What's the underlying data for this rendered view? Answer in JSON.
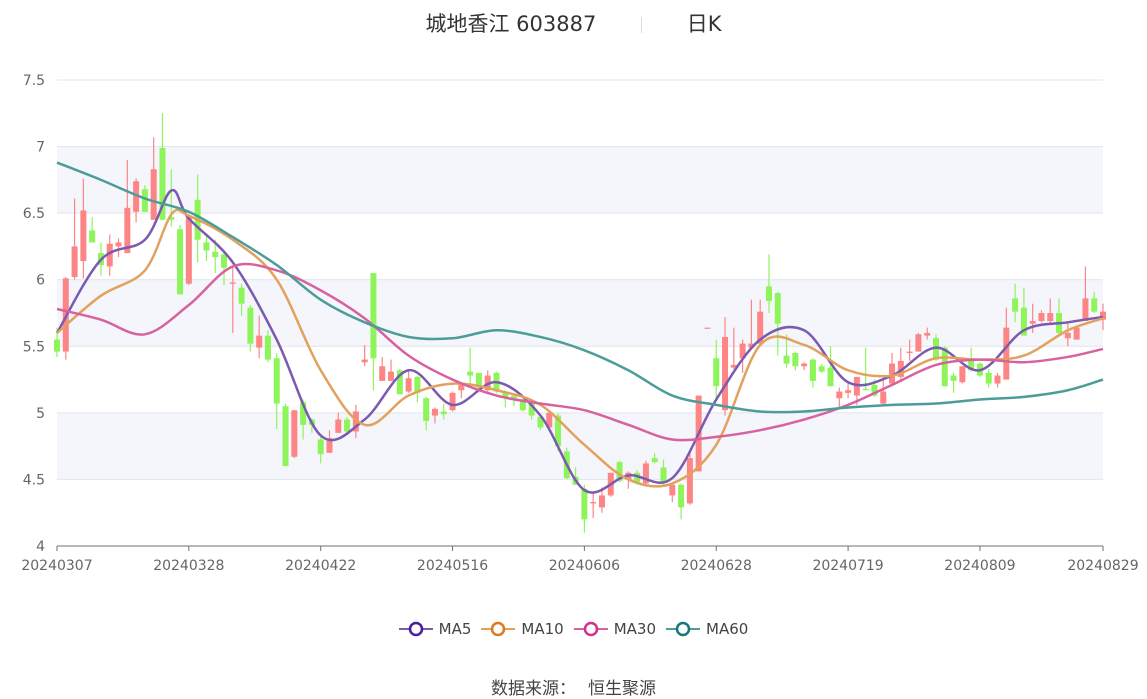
{
  "title": {
    "stock_name": "城地香江",
    "stock_code": "603887",
    "period": "日K"
  },
  "footer": {
    "label": "数据来源：",
    "source": "恒生聚源"
  },
  "chart_data": {
    "type": "candlestick",
    "ylim": [
      4,
      7.5
    ],
    "yticks": [
      "4",
      "4.5",
      "5",
      "5.5",
      "6",
      "6.5",
      "7",
      "7.5"
    ],
    "grid": true,
    "legend_placement": "bottom",
    "xticks": [
      {
        "index": 0,
        "label": "20240307"
      },
      {
        "index": 15,
        "label": "20240328"
      },
      {
        "index": 30,
        "label": "20240422"
      },
      {
        "index": 45,
        "label": "20240516"
      },
      {
        "index": 60,
        "label": "20240606"
      },
      {
        "index": 75,
        "label": "20240628"
      },
      {
        "index": 90,
        "label": "20240719"
      },
      {
        "index": 105,
        "label": "20240809"
      },
      {
        "index": 119,
        "label": "20240829"
      }
    ],
    "colors": {
      "up": "#fd8585",
      "down": "#8df55a"
    },
    "candles_fields": [
      "open",
      "close",
      "low",
      "high"
    ],
    "candles": [
      [
        5.55,
        5.46,
        5.42,
        5.64
      ],
      [
        5.46,
        6.01,
        5.4,
        6.02
      ],
      [
        6.02,
        6.25,
        6.0,
        6.61
      ],
      [
        6.14,
        6.52,
        6.01,
        6.76
      ],
      [
        6.37,
        6.28,
        6.28,
        6.47
      ],
      [
        6.2,
        6.11,
        6.03,
        6.28
      ],
      [
        6.1,
        6.27,
        6.03,
        6.34
      ],
      [
        6.25,
        6.28,
        6.17,
        6.31
      ],
      [
        6.2,
        6.54,
        6.2,
        6.9
      ],
      [
        6.51,
        6.74,
        6.43,
        6.76
      ],
      [
        6.68,
        6.51,
        6.51,
        6.71
      ],
      [
        6.45,
        6.83,
        6.45,
        7.07
      ],
      [
        6.99,
        6.45,
        6.45,
        7.25
      ],
      [
        6.47,
        6.45,
        6.4,
        6.83
      ],
      [
        6.38,
        5.89,
        5.89,
        6.41
      ],
      [
        5.97,
        6.48,
        5.96,
        6.49
      ],
      [
        6.6,
        6.3,
        6.13,
        6.79
      ],
      [
        6.28,
        6.22,
        6.14,
        6.33
      ],
      [
        6.21,
        6.17,
        6.05,
        6.3
      ],
      [
        6.19,
        6.09,
        5.96,
        6.22
      ],
      [
        5.97,
        5.98,
        5.6,
        6.1
      ],
      [
        5.94,
        5.82,
        5.73,
        5.97
      ],
      [
        5.79,
        5.52,
        5.46,
        5.81
      ],
      [
        5.49,
        5.58,
        5.41,
        5.73
      ],
      [
        5.58,
        5.4,
        5.38,
        5.62
      ],
      [
        5.41,
        5.07,
        4.88,
        5.45
      ],
      [
        5.05,
        4.6,
        4.6,
        5.07
      ],
      [
        4.67,
        5.02,
        4.66,
        5.02
      ],
      [
        5.08,
        4.91,
        4.8,
        5.1
      ],
      [
        4.95,
        4.91,
        4.85,
        4.96
      ],
      [
        4.8,
        4.69,
        4.62,
        4.82
      ],
      [
        4.7,
        4.81,
        4.7,
        4.87
      ],
      [
        4.85,
        4.95,
        4.85,
        5.0
      ],
      [
        4.95,
        4.86,
        4.85,
        4.97
      ],
      [
        4.86,
        5.01,
        4.81,
        5.06
      ],
      [
        5.38,
        5.4,
        5.35,
        5.51
      ],
      [
        6.05,
        5.41,
        5.17,
        6.05
      ],
      [
        5.24,
        5.35,
        5.24,
        5.42
      ],
      [
        5.24,
        5.31,
        5.24,
        5.4
      ],
      [
        5.32,
        5.14,
        5.14,
        5.33
      ],
      [
        5.16,
        5.26,
        5.15,
        5.32
      ],
      [
        5.27,
        5.15,
        5.08,
        5.28
      ],
      [
        5.11,
        4.94,
        4.87,
        5.12
      ],
      [
        4.98,
        5.03,
        4.92,
        5.04
      ],
      [
        5.01,
        4.99,
        4.95,
        5.07
      ],
      [
        5.02,
        5.15,
        5.01,
        5.16
      ],
      [
        5.17,
        5.22,
        5.11,
        5.23
      ],
      [
        5.31,
        5.28,
        5.19,
        5.49
      ],
      [
        5.3,
        5.19,
        5.17,
        5.3
      ],
      [
        5.17,
        5.28,
        5.16,
        5.32
      ],
      [
        5.3,
        5.16,
        5.15,
        5.31
      ],
      [
        5.15,
        5.12,
        5.04,
        5.17
      ],
      [
        5.13,
        5.11,
        5.05,
        5.14
      ],
      [
        5.1,
        5.02,
        5.01,
        5.12
      ],
      [
        5.07,
        4.98,
        4.95,
        5.08
      ],
      [
        4.97,
        4.89,
        4.87,
        4.99
      ],
      [
        4.89,
        5.0,
        4.89,
        5.0
      ],
      [
        4.98,
        4.75,
        4.71,
        5.0
      ],
      [
        4.71,
        4.51,
        4.5,
        4.74
      ],
      [
        4.52,
        4.46,
        4.46,
        4.59
      ],
      [
        4.43,
        4.2,
        4.1,
        4.46
      ],
      [
        4.32,
        4.33,
        4.21,
        4.4
      ],
      [
        4.29,
        4.38,
        4.25,
        4.44
      ],
      [
        4.38,
        4.55,
        4.37,
        4.55
      ],
      [
        4.63,
        4.49,
        4.48,
        4.64
      ],
      [
        4.5,
        4.55,
        4.43,
        4.56
      ],
      [
        4.55,
        4.48,
        4.46,
        4.57
      ],
      [
        4.47,
        4.62,
        4.46,
        4.64
      ],
      [
        4.66,
        4.63,
        4.62,
        4.7
      ],
      [
        4.59,
        4.47,
        4.46,
        4.65
      ],
      [
        4.38,
        4.46,
        4.33,
        4.47
      ],
      [
        4.46,
        4.29,
        4.2,
        4.47
      ],
      [
        4.32,
        4.66,
        4.31,
        4.71
      ],
      [
        4.56,
        5.13,
        4.56,
        5.13
      ],
      [
        5.64,
        5.64,
        5.64,
        5.64
      ],
      [
        5.41,
        5.2,
        5.1,
        5.55
      ],
      [
        5.02,
        5.57,
        4.98,
        5.72
      ],
      [
        5.34,
        5.36,
        5.33,
        5.64
      ],
      [
        5.41,
        5.52,
        5.3,
        5.55
      ],
      [
        5.49,
        5.52,
        5.48,
        5.85
      ],
      [
        5.52,
        5.76,
        5.52,
        5.85
      ],
      [
        5.95,
        5.84,
        5.75,
        6.19
      ],
      [
        5.9,
        5.67,
        5.43,
        5.91
      ],
      [
        5.43,
        5.37,
        5.34,
        5.59
      ],
      [
        5.45,
        5.35,
        5.32,
        5.46
      ],
      [
        5.35,
        5.37,
        5.32,
        5.38
      ],
      [
        5.4,
        5.24,
        5.19,
        5.41
      ],
      [
        5.35,
        5.31,
        5.3,
        5.37
      ],
      [
        5.34,
        5.2,
        5.2,
        5.5
      ],
      [
        5.11,
        5.16,
        5.04,
        5.19
      ],
      [
        5.15,
        5.17,
        5.11,
        5.22
      ],
      [
        5.13,
        5.27,
        5.06,
        5.27
      ],
      [
        5.18,
        5.17,
        5.17,
        5.49
      ],
      [
        5.21,
        5.13,
        5.12,
        5.25
      ],
      [
        5.07,
        5.16,
        5.06,
        5.26
      ],
      [
        5.22,
        5.37,
        5.2,
        5.45
      ],
      [
        5.27,
        5.39,
        5.23,
        5.49
      ],
      [
        5.45,
        5.46,
        5.39,
        5.55
      ],
      [
        5.46,
        5.59,
        5.46,
        5.6
      ],
      [
        5.58,
        5.6,
        5.55,
        5.64
      ],
      [
        5.56,
        5.4,
        5.39,
        5.59
      ],
      [
        5.49,
        5.2,
        5.2,
        5.5
      ],
      [
        5.28,
        5.24,
        5.15,
        5.3
      ],
      [
        5.23,
        5.35,
        5.22,
        5.35
      ],
      [
        5.41,
        5.32,
        5.31,
        5.49
      ],
      [
        5.37,
        5.28,
        5.27,
        5.38
      ],
      [
        5.3,
        5.22,
        5.19,
        5.33
      ],
      [
        5.22,
        5.28,
        5.19,
        5.3
      ],
      [
        5.25,
        5.64,
        5.25,
        5.79
      ],
      [
        5.86,
        5.76,
        5.68,
        5.97
      ],
      [
        5.79,
        5.58,
        5.58,
        5.94
      ],
      [
        5.67,
        5.69,
        5.6,
        5.82
      ],
      [
        5.69,
        5.75,
        5.68,
        5.77
      ],
      [
        5.69,
        5.75,
        5.66,
        5.86
      ],
      [
        5.75,
        5.6,
        5.59,
        5.86
      ],
      [
        5.56,
        5.6,
        5.5,
        5.67
      ],
      [
        5.55,
        5.64,
        5.55,
        5.65
      ],
      [
        5.69,
        5.86,
        5.69,
        6.1
      ],
      [
        5.86,
        5.76,
        5.75,
        5.91
      ],
      [
        5.7,
        5.76,
        5.62,
        5.82
      ]
    ],
    "series": [
      {
        "name": "MA5",
        "color": "#7b5ab0",
        "marker_color": "#4b1f9b",
        "points": [
          [
            0,
            5.6
          ],
          [
            5,
            6.15
          ],
          [
            10,
            6.3
          ],
          [
            13,
            6.67
          ],
          [
            15,
            6.46
          ],
          [
            20,
            6.13
          ],
          [
            25,
            5.55
          ],
          [
            30,
            4.83
          ],
          [
            35,
            4.95
          ],
          [
            40,
            5.32
          ],
          [
            45,
            5.06
          ],
          [
            50,
            5.23
          ],
          [
            55,
            4.98
          ],
          [
            60,
            4.42
          ],
          [
            65,
            4.53
          ],
          [
            70,
            4.51
          ],
          [
            75,
            5.1
          ],
          [
            80,
            5.55
          ],
          [
            85,
            5.62
          ],
          [
            90,
            5.23
          ],
          [
            95,
            5.28
          ],
          [
            100,
            5.49
          ],
          [
            105,
            5.32
          ],
          [
            110,
            5.62
          ],
          [
            115,
            5.68
          ],
          [
            119,
            5.72
          ]
        ]
      },
      {
        "name": "MA10",
        "color": "#e3a15e",
        "marker_color": "#dd7a1f",
        "points": [
          [
            0,
            5.6
          ],
          [
            5,
            5.88
          ],
          [
            10,
            6.07
          ],
          [
            13,
            6.49
          ],
          [
            15,
            6.48
          ],
          [
            20,
            6.3
          ],
          [
            25,
            6.0
          ],
          [
            30,
            5.32
          ],
          [
            35,
            4.91
          ],
          [
            40,
            5.13
          ],
          [
            45,
            5.22
          ],
          [
            50,
            5.17
          ],
          [
            55,
            5.06
          ],
          [
            60,
            4.76
          ],
          [
            65,
            4.5
          ],
          [
            70,
            4.47
          ],
          [
            75,
            4.76
          ],
          [
            80,
            5.51
          ],
          [
            85,
            5.51
          ],
          [
            90,
            5.32
          ],
          [
            95,
            5.28
          ],
          [
            100,
            5.41
          ],
          [
            105,
            5.4
          ],
          [
            110,
            5.43
          ],
          [
            115,
            5.62
          ],
          [
            119,
            5.71
          ]
        ]
      },
      {
        "name": "MA30",
        "color": "#d8619f",
        "marker_color": "#d1328f",
        "points": [
          [
            0,
            5.78
          ],
          [
            5,
            5.7
          ],
          [
            10,
            5.59
          ],
          [
            15,
            5.81
          ],
          [
            20,
            6.1
          ],
          [
            25,
            6.07
          ],
          [
            30,
            5.92
          ],
          [
            35,
            5.71
          ],
          [
            40,
            5.43
          ],
          [
            45,
            5.25
          ],
          [
            50,
            5.13
          ],
          [
            55,
            5.07
          ],
          [
            60,
            5.02
          ],
          [
            65,
            4.91
          ],
          [
            70,
            4.8
          ],
          [
            75,
            4.82
          ],
          [
            80,
            4.87
          ],
          [
            85,
            4.95
          ],
          [
            90,
            5.06
          ],
          [
            95,
            5.21
          ],
          [
            100,
            5.36
          ],
          [
            105,
            5.4
          ],
          [
            110,
            5.38
          ],
          [
            115,
            5.42
          ],
          [
            119,
            5.48
          ]
        ]
      },
      {
        "name": "MA60",
        "color": "#4c9c99",
        "marker_color": "#13797a",
        "points": [
          [
            0,
            6.88
          ],
          [
            5,
            6.75
          ],
          [
            10,
            6.61
          ],
          [
            15,
            6.51
          ],
          [
            20,
            6.32
          ],
          [
            25,
            6.11
          ],
          [
            30,
            5.85
          ],
          [
            35,
            5.68
          ],
          [
            40,
            5.57
          ],
          [
            45,
            5.56
          ],
          [
            50,
            5.62
          ],
          [
            55,
            5.57
          ],
          [
            60,
            5.47
          ],
          [
            65,
            5.32
          ],
          [
            70,
            5.13
          ],
          [
            75,
            5.06
          ],
          [
            80,
            5.01
          ],
          [
            85,
            5.01
          ],
          [
            90,
            5.04
          ],
          [
            95,
            5.06
          ],
          [
            100,
            5.07
          ],
          [
            105,
            5.1
          ],
          [
            110,
            5.12
          ],
          [
            115,
            5.17
          ],
          [
            119,
            5.25
          ]
        ]
      }
    ]
  }
}
